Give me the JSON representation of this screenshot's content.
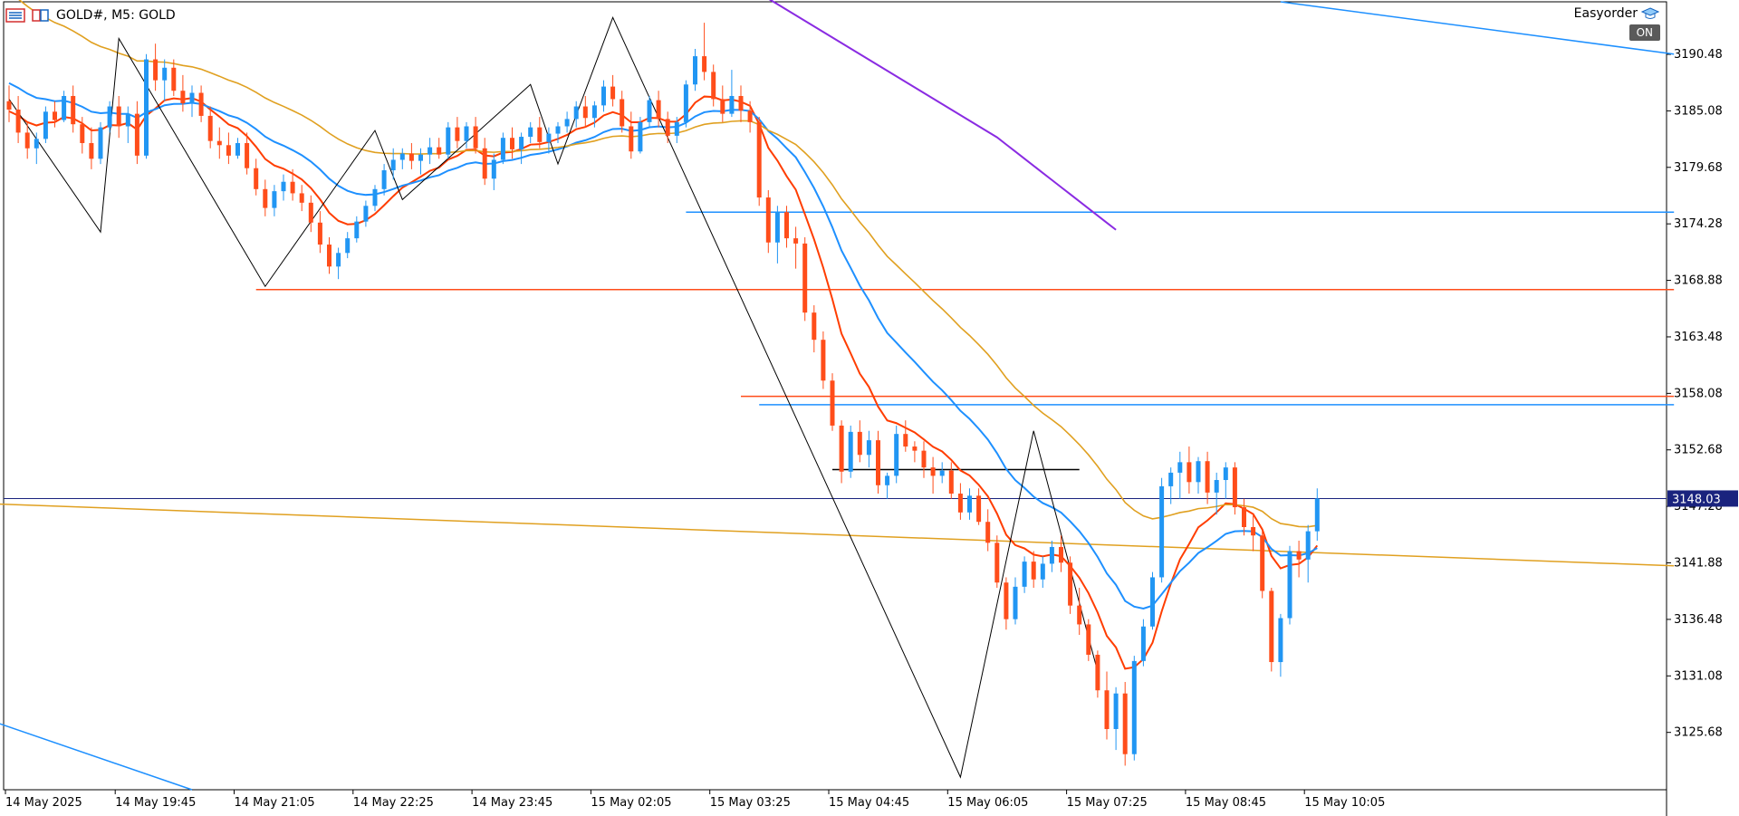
{
  "header": {
    "symbol_text": "GOLD#, M5:  GOLD"
  },
  "expert": {
    "name": "Easyorder",
    "status": "ON"
  },
  "colors": {
    "bull": "#2196f3",
    "bear": "#ff4d1a",
    "ema_red": "#ff3d00",
    "ema_blue": "#1e90ff",
    "ema_gold": "#e0a020",
    "ema_purple": "#8a2be2",
    "long_gold": "#e0a020",
    "long_blue": "#1e90ff",
    "zigzag": "#000000",
    "price_line": "#1a237e"
  },
  "chart_data": {
    "type": "candlestick",
    "ylim": [
      3120.2,
      3195.5
    ],
    "y_ticks": [
      "3190.48",
      "3185.08",
      "3179.68",
      "3174.28",
      "3168.88",
      "3163.48",
      "3158.08",
      "3152.68",
      "3147.28",
      "3141.88",
      "3136.48",
      "3131.08",
      "3125.68"
    ],
    "x_ticks": [
      "14 May 2025",
      "14 May 19:45",
      "14 May 21:05",
      "14 May 22:25",
      "14 May 23:45",
      "15 May 02:05",
      "15 May 03:25",
      "15 May 04:45",
      "15 May 06:05",
      "15 May 07:25",
      "15 May 08:45",
      "15 May 10:05"
    ],
    "current_price": "3148.03",
    "candles": [
      [
        3186.0,
        3187.5,
        3184.0,
        3185.2
      ],
      [
        3185.2,
        3186.5,
        3182.0,
        3183.0
      ],
      [
        3183.0,
        3184.0,
        3180.5,
        3181.5
      ],
      [
        3181.5,
        3183.0,
        3180.0,
        3182.4
      ],
      [
        3182.4,
        3185.5,
        3182.0,
        3185.0
      ],
      [
        3185.0,
        3186.0,
        3183.5,
        3184.2
      ],
      [
        3184.2,
        3187.0,
        3184.0,
        3186.5
      ],
      [
        3186.5,
        3187.5,
        3183.0,
        3183.8
      ],
      [
        3183.8,
        3184.5,
        3181.0,
        3182.0
      ],
      [
        3182.0,
        3183.5,
        3179.5,
        3180.5
      ],
      [
        3180.5,
        3184.0,
        3180.0,
        3183.5
      ],
      [
        3183.5,
        3186.0,
        3183.0,
        3185.5
      ],
      [
        3185.5,
        3186.5,
        3182.5,
        3183.6
      ],
      [
        3183.6,
        3185.5,
        3182.0,
        3184.8
      ],
      [
        3184.8,
        3186.0,
        3180.0,
        3180.8
      ],
      [
        3180.8,
        3190.5,
        3180.5,
        3190.0
      ],
      [
        3190.0,
        3191.5,
        3187.0,
        3188.0
      ],
      [
        3188.0,
        3190.0,
        3186.0,
        3189.2
      ],
      [
        3189.2,
        3190.0,
        3186.5,
        3187.0
      ],
      [
        3187.0,
        3188.5,
        3185.0,
        3185.8
      ],
      [
        3185.8,
        3187.5,
        3184.5,
        3186.8
      ],
      [
        3186.8,
        3187.5,
        3184.0,
        3184.6
      ],
      [
        3184.6,
        3185.5,
        3181.5,
        3182.2
      ],
      [
        3182.2,
        3183.5,
        3180.5,
        3181.8
      ],
      [
        3181.8,
        3183.0,
        3180.0,
        3180.8
      ],
      [
        3180.8,
        3182.5,
        3180.5,
        3182.0
      ],
      [
        3182.0,
        3183.0,
        3179.0,
        3179.6
      ],
      [
        3179.6,
        3180.5,
        3177.0,
        3177.6
      ],
      [
        3177.6,
        3178.5,
        3175.0,
        3175.8
      ],
      [
        3175.8,
        3178.0,
        3175.0,
        3177.4
      ],
      [
        3177.4,
        3179.0,
        3176.5,
        3178.3
      ],
      [
        3178.3,
        3179.5,
        3176.5,
        3177.2
      ],
      [
        3177.2,
        3178.0,
        3175.5,
        3176.3
      ],
      [
        3176.3,
        3177.0,
        3173.5,
        3174.4
      ],
      [
        3174.4,
        3175.5,
        3171.5,
        3172.3
      ],
      [
        3172.3,
        3173.0,
        3169.5,
        3170.2
      ],
      [
        3170.2,
        3172.0,
        3169.0,
        3171.5
      ],
      [
        3171.5,
        3173.5,
        3171.0,
        3172.9
      ],
      [
        3172.9,
        3175.0,
        3172.5,
        3174.5
      ],
      [
        3174.5,
        3176.5,
        3174.0,
        3176.0
      ],
      [
        3176.0,
        3178.0,
        3175.5,
        3177.6
      ],
      [
        3177.6,
        3180.0,
        3177.0,
        3179.4
      ],
      [
        3179.4,
        3181.5,
        3178.5,
        3180.4
      ],
      [
        3180.4,
        3181.5,
        3179.5,
        3181.0
      ],
      [
        3181.0,
        3182.0,
        3179.5,
        3180.3
      ],
      [
        3180.3,
        3181.5,
        3179.0,
        3180.9
      ],
      [
        3180.9,
        3182.5,
        3180.0,
        3181.6
      ],
      [
        3181.6,
        3182.5,
        3180.5,
        3180.9
      ],
      [
        3180.9,
        3184.0,
        3180.5,
        3183.5
      ],
      [
        3183.5,
        3184.5,
        3181.5,
        3182.2
      ],
      [
        3182.2,
        3184.0,
        3181.5,
        3183.6
      ],
      [
        3183.6,
        3184.5,
        3181.0,
        3181.5
      ],
      [
        3181.5,
        3182.5,
        3178.0,
        3178.6
      ],
      [
        3178.6,
        3181.0,
        3177.5,
        3180.4
      ],
      [
        3180.4,
        3183.0,
        3180.0,
        3182.5
      ],
      [
        3182.5,
        3183.5,
        3180.5,
        3181.4
      ],
      [
        3181.4,
        3183.0,
        3180.0,
        3182.6
      ],
      [
        3182.6,
        3184.0,
        3182.0,
        3183.5
      ],
      [
        3183.5,
        3184.5,
        3181.5,
        3182.1
      ],
      [
        3182.1,
        3183.5,
        3181.0,
        3182.9
      ],
      [
        3182.9,
        3184.0,
        3182.0,
        3183.6
      ],
      [
        3183.6,
        3185.0,
        3183.0,
        3184.3
      ],
      [
        3184.3,
        3186.0,
        3183.5,
        3185.5
      ],
      [
        3185.5,
        3186.5,
        3183.5,
        3184.4
      ],
      [
        3184.4,
        3186.0,
        3183.5,
        3185.6
      ],
      [
        3185.6,
        3188.0,
        3185.0,
        3187.4
      ],
      [
        3187.4,
        3188.5,
        3185.5,
        3186.2
      ],
      [
        3186.2,
        3187.0,
        3183.0,
        3183.6
      ],
      [
        3183.6,
        3185.0,
        3180.5,
        3181.2
      ],
      [
        3181.2,
        3184.5,
        3181.0,
        3184.0
      ],
      [
        3184.0,
        3186.5,
        3183.5,
        3186.1
      ],
      [
        3186.1,
        3187.0,
        3183.5,
        3184.3
      ],
      [
        3184.3,
        3185.0,
        3182.0,
        3182.7
      ],
      [
        3182.7,
        3184.5,
        3182.0,
        3184.0
      ],
      [
        3184.0,
        3188.0,
        3183.5,
        3187.6
      ],
      [
        3187.6,
        3191.0,
        3187.0,
        3190.3
      ],
      [
        3190.3,
        3193.5,
        3188.0,
        3188.8
      ],
      [
        3188.8,
        3189.5,
        3185.5,
        3186.2
      ],
      [
        3186.2,
        3187.5,
        3184.0,
        3184.8
      ],
      [
        3184.8,
        3189.0,
        3184.5,
        3186.5
      ],
      [
        3186.5,
        3187.5,
        3184.0,
        3185.1
      ],
      [
        3185.1,
        3186.0,
        3183.0,
        3184.0
      ],
      [
        3184.0,
        3184.5,
        3176.0,
        3176.8
      ],
      [
        3176.8,
        3177.5,
        3171.5,
        3172.5
      ],
      [
        3172.5,
        3176.0,
        3170.5,
        3175.4
      ],
      [
        3175.4,
        3176.0,
        3172.0,
        3172.9
      ],
      [
        3172.9,
        3174.0,
        3170.0,
        3172.4
      ],
      [
        3172.4,
        3173.0,
        3165.0,
        3165.8
      ],
      [
        3165.8,
        3166.5,
        3162.0,
        3163.2
      ],
      [
        3163.2,
        3164.0,
        3158.5,
        3159.3
      ],
      [
        3159.3,
        3160.0,
        3154.5,
        3155.0
      ],
      [
        3155.0,
        3155.5,
        3149.5,
        3150.6
      ],
      [
        3150.6,
        3155.0,
        3150.0,
        3154.4
      ],
      [
        3154.4,
        3155.5,
        3151.5,
        3152.2
      ],
      [
        3152.2,
        3154.5,
        3151.0,
        3153.6
      ],
      [
        3153.6,
        3154.5,
        3148.5,
        3149.3
      ],
      [
        3149.3,
        3150.5,
        3148.0,
        3150.2
      ],
      [
        3150.2,
        3155.0,
        3149.5,
        3154.2
      ],
      [
        3154.2,
        3155.5,
        3152.5,
        3153.0
      ],
      [
        3153.0,
        3153.5,
        3151.5,
        3152.6
      ],
      [
        3152.6,
        3153.5,
        3150.0,
        3151.0
      ],
      [
        3151.0,
        3152.0,
        3148.5,
        3150.2
      ],
      [
        3150.2,
        3151.5,
        3149.5,
        3150.7
      ],
      [
        3150.7,
        3151.5,
        3148.0,
        3148.5
      ],
      [
        3148.5,
        3149.5,
        3146.0,
        3146.7
      ],
      [
        3146.7,
        3149.0,
        3146.0,
        3148.3
      ],
      [
        3148.3,
        3149.0,
        3145.5,
        3145.8
      ],
      [
        3145.8,
        3147.0,
        3143.0,
        3143.8
      ],
      [
        3143.8,
        3144.5,
        3139.5,
        3140.0
      ],
      [
        3140.0,
        3140.5,
        3135.5,
        3136.5
      ],
      [
        3136.5,
        3140.5,
        3136.0,
        3139.6
      ],
      [
        3139.6,
        3142.5,
        3139.0,
        3142.0
      ],
      [
        3142.0,
        3143.0,
        3139.5,
        3140.3
      ],
      [
        3140.3,
        3142.5,
        3139.5,
        3141.8
      ],
      [
        3141.8,
        3144.0,
        3141.0,
        3143.4
      ],
      [
        3143.4,
        3144.5,
        3141.0,
        3141.9
      ],
      [
        3141.9,
        3142.5,
        3137.0,
        3137.8
      ],
      [
        3137.8,
        3139.5,
        3135.0,
        3136.0
      ],
      [
        3136.0,
        3136.5,
        3132.5,
        3133.1
      ],
      [
        3133.1,
        3133.5,
        3129.0,
        3129.7
      ],
      [
        3129.7,
        3131.5,
        3125.0,
        3126.0
      ],
      [
        3126.0,
        3130.0,
        3124.0,
        3129.4
      ],
      [
        3129.4,
        3130.5,
        3122.5,
        3123.6
      ],
      [
        3123.6,
        3133.0,
        3123.0,
        3132.5
      ],
      [
        3132.5,
        3136.5,
        3132.0,
        3135.8
      ],
      [
        3135.8,
        3141.0,
        3135.5,
        3140.5
      ],
      [
        3140.5,
        3150.0,
        3140.0,
        3149.2
      ],
      [
        3149.2,
        3151.0,
        3147.5,
        3150.5
      ],
      [
        3150.5,
        3152.5,
        3148.0,
        3151.5
      ],
      [
        3151.5,
        3153.0,
        3148.5,
        3149.6
      ],
      [
        3149.6,
        3152.0,
        3148.5,
        3151.6
      ],
      [
        3151.6,
        3152.5,
        3147.5,
        3148.6
      ],
      [
        3148.6,
        3150.5,
        3146.5,
        3149.8
      ],
      [
        3149.8,
        3151.5,
        3148.0,
        3151.0
      ],
      [
        3151.0,
        3151.5,
        3146.5,
        3147.2
      ],
      [
        3147.2,
        3148.0,
        3144.5,
        3145.3
      ],
      [
        3145.3,
        3146.5,
        3143.0,
        3144.5
      ],
      [
        3144.5,
        3145.0,
        3138.5,
        3139.2
      ],
      [
        3139.2,
        3139.5,
        3131.5,
        3132.4
      ],
      [
        3132.4,
        3137.0,
        3131.0,
        3136.6
      ],
      [
        3136.6,
        3143.5,
        3136.0,
        3143.0
      ],
      [
        3143.0,
        3144.0,
        3140.5,
        3142.2
      ],
      [
        3142.2,
        3145.5,
        3140.0,
        3144.9
      ],
      [
        3144.9,
        3149.0,
        3144.0,
        3148.03
      ]
    ]
  }
}
